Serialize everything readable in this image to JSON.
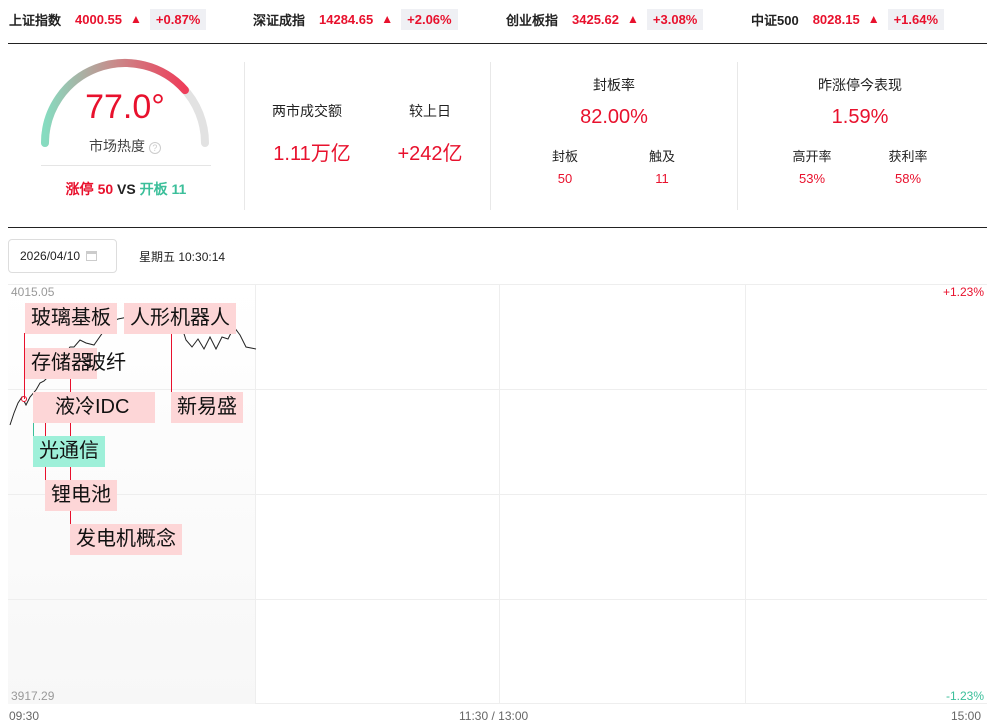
{
  "indices": [
    {
      "name": "上证指数",
      "value": "4000.55",
      "arrow": "▲",
      "change": "+0.87%"
    },
    {
      "name": "深证成指",
      "value": "14284.65",
      "arrow": "▲",
      "change": "+2.06%"
    },
    {
      "name": "创业板指",
      "value": "3425.62",
      "arrow": "▲",
      "change": "+3.08%"
    },
    {
      "name": "中证500",
      "value": "8028.15",
      "arrow": "▲",
      "change": "+1.64%"
    }
  ],
  "heat": {
    "value": "77.0°",
    "level": 0.77,
    "label": "市场热度",
    "help": "?",
    "limit_up_label": "涨停",
    "limit_up": "50",
    "vs": "VS",
    "open_label": "开板",
    "open": "11"
  },
  "turnover": {
    "label": "两市成交额",
    "value": "1.11万亿",
    "cmp_label": "较上日",
    "cmp_value": "+242亿"
  },
  "seal": {
    "label": "封板率",
    "value": "82.00%",
    "sub": [
      {
        "label": "封板",
        "value": "50"
      },
      {
        "label": "触及",
        "value": "11"
      }
    ]
  },
  "yest": {
    "label": "昨涨停今表现",
    "value": "1.59%",
    "sub": [
      {
        "label": "高开率",
        "value": "53%"
      },
      {
        "label": "获利率",
        "value": "58%"
      }
    ]
  },
  "date": {
    "value": "2026/04/10",
    "weekday_time": "星期五 10:30:14"
  },
  "chart": {
    "y_max": "4015.05",
    "y_min": "3917.29",
    "pct_max": "+1.23%",
    "pct_min": "-1.23%",
    "x_ticks": [
      "09:30",
      "11:30 / 13:00",
      "15:00"
    ],
    "tags": [
      "玻璃基板",
      "人形机器人",
      "存储器",
      "玻纤",
      "液冷IDC",
      "新易盛",
      "光通信",
      "锂电池",
      "发电机概念"
    ]
  },
  "colors": {
    "up": "#e8112d",
    "down": "#3bbf9a",
    "tag_up": "#fdd6d7",
    "tag_down": "#9ef0d9"
  }
}
